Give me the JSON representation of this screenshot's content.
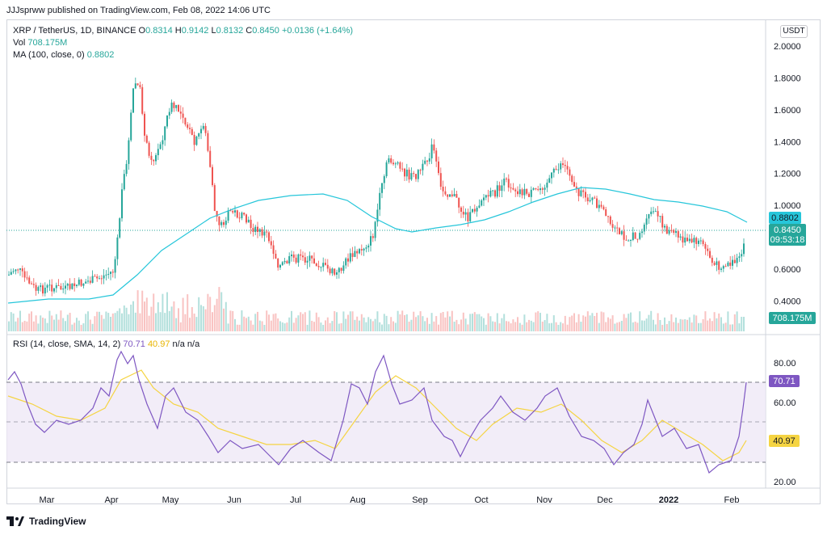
{
  "header": {
    "published_line": "JJJsprww published on TradingView.com, Feb 08, 2022 14:06 UTC",
    "currency_unit": "USDT"
  },
  "legend": {
    "symbol": "XRP / TetherUS, 1D, BINANCE",
    "open_label": "O",
    "open": "0.8314",
    "high_label": "H",
    "high": "0.9142",
    "low_label": "L",
    "low": "0.8132",
    "close_label": "C",
    "close": "0.8450",
    "change": "+0.0136 (+1.64%)",
    "vol_label": "Vol",
    "vol_value": "708.175M",
    "ma_label": "MA (100, close, 0)",
    "ma_value": "0.8802",
    "rsi_label": "RSI (14, close, SMA, 14, 2)",
    "rsi_value": "70.71",
    "rsi_ma_value": "40.97",
    "rsi_na1": "n/a",
    "rsi_na2": "n/a"
  },
  "price_axis": {
    "ticks": [
      "2.0000",
      "1.8000",
      "1.6000",
      "1.4000",
      "1.2000",
      "1.0000",
      "0.6000",
      "0.4000"
    ],
    "tick_values": [
      2.0,
      1.8,
      1.6,
      1.4,
      1.2,
      1.0,
      0.6,
      0.4
    ],
    "ma_tag": "0.8802",
    "last_price_tag": "0.8450",
    "countdown_tag": "09:53:18",
    "volume_tag": "708.175M"
  },
  "rsi_axis": {
    "ticks": [
      "80.00",
      "60.00",
      "20.00"
    ],
    "tick_values": [
      80,
      60,
      20
    ],
    "rsi_tag": "70.71",
    "rsi_ma_tag": "40.97"
  },
  "time_axis": {
    "labels": [
      "Mar",
      "Apr",
      "May",
      "Jun",
      "Jul",
      "Aug",
      "Sep",
      "Oct",
      "Nov",
      "Dec",
      "2022",
      "Feb"
    ]
  },
  "footer": {
    "brand": "TradingView"
  },
  "colors": {
    "up": "#26a69a",
    "down": "#ef5350",
    "ma": "#26c6da",
    "rsi": "#7e57c2",
    "rsi_ma": "#f5d442",
    "band": "#ede7f6"
  },
  "chart_data": {
    "type": "line",
    "title": "XRP / TetherUS, 1D, BINANCE",
    "description_series": [
      {
        "name": "MA (100, close, 0)",
        "last": 0.8802
      },
      {
        "name": "RSI (14, close, SMA, 14, 2)",
        "last": 70.71
      }
    ],
    "x": [
      "Mar",
      "Apr",
      "May",
      "Jun",
      "Jul",
      "Aug",
      "Sep",
      "Oct",
      "Nov",
      "Dec",
      "2022",
      "Feb"
    ],
    "close_approx": [
      0.6,
      0.55,
      1.5,
      0.95,
      0.66,
      0.72,
      1.18,
      1.05,
      1.1,
      0.85,
      0.78,
      0.845
    ],
    "ylim": [
      0.35,
      2.05
    ],
    "rsi_ylim": [
      20,
      85
    ],
    "rsi_levels": [
      70,
      50,
      30
    ]
  }
}
